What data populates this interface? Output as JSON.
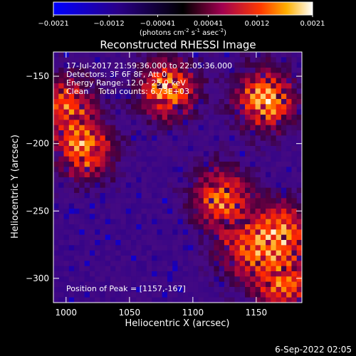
{
  "chart_data": {
    "type": "heatmap",
    "title": "Reconstructed RHESSI Image",
    "xlabel": "Heliocentric X (arcsec)",
    "ylabel": "Heliocentric Y (arcsec)",
    "xlim": [
      990,
      1186
    ],
    "ylim": [
      -318,
      -132
    ],
    "x_ticks": [
      "1000",
      "1050",
      "1100",
      "1150"
    ],
    "y_ticks": [
      "-150",
      "-200",
      "-250",
      "-300"
    ],
    "colorbar": {
      "range": [
        -0.0021,
        0.0021
      ],
      "tick_labels": [
        "-0.0021",
        "-0.0012",
        "-0.00041",
        "0.00041",
        "0.0012",
        "0.0021"
      ],
      "unit_parts": [
        "(photons cm",
        "-2",
        " s",
        "-1",
        " asec",
        "-2",
        ")"
      ]
    },
    "annotations": [
      "17-Jul-2017 21:59:36.000 to 22:05:36.000",
      "Detectors: 3F 6F 8F, Att 0",
      "Energy Range: 12.0 - 25.0 keV",
      "Clean    Total counts: 6.73E+03"
    ],
    "peak_label": "Position of Peak = [1157,-167]",
    "sources": [
      {
        "x": 1157,
        "y": -167,
        "level": 1.0
      },
      {
        "x": 1080,
        "y": -160,
        "level": 0.9
      },
      {
        "x": 1015,
        "y": -205,
        "level": 0.85
      },
      {
        "x": 1000,
        "y": -170,
        "level": 0.7
      },
      {
        "x": 1122,
        "y": -240,
        "level": 0.8
      },
      {
        "x": 1170,
        "y": -265,
        "level": 0.8
      },
      {
        "x": 1172,
        "y": -305,
        "level": 0.75
      },
      {
        "x": 1140,
        "y": -280,
        "level": 0.6
      }
    ],
    "grid": false
  },
  "footer": {
    "date": "6-Sep-2022 02:05"
  }
}
